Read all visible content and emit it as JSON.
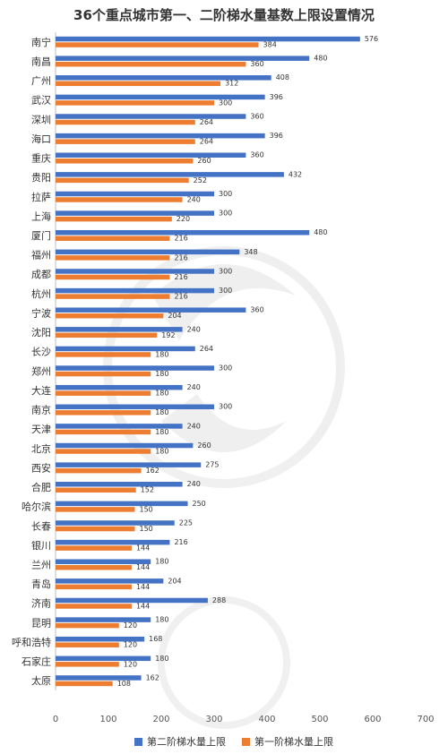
{
  "chart_data": {
    "type": "bar",
    "orientation": "horizontal",
    "title": "36个重点城市第一、二阶梯水量基数上限设置情况",
    "categories": [
      "南宁",
      "南昌",
      "广州",
      "武汉",
      "深圳",
      "海口",
      "重庆",
      "贵阳",
      "拉萨",
      "上海",
      "厦门",
      "福州",
      "成都",
      "杭州",
      "宁波",
      "沈阳",
      "长沙",
      "郑州",
      "大连",
      "南京",
      "天津",
      "北京",
      "西安",
      "合肥",
      "哈尔滨",
      "长春",
      "银川",
      "兰州",
      "青岛",
      "济南",
      "昆明",
      "呼和浩特",
      "石家庄",
      "太原"
    ],
    "series": [
      {
        "name": "第二阶梯水量上限",
        "color": "#4472C4",
        "values": [
          576,
          480,
          408,
          396,
          360,
          396,
          360,
          432,
          300,
          300,
          480,
          348,
          300,
          300,
          360,
          240,
          264,
          300,
          240,
          300,
          240,
          260,
          275,
          240,
          250,
          225,
          216,
          180,
          204,
          288,
          180,
          168,
          180,
          162
        ]
      },
      {
        "name": "第一阶梯水量上限",
        "color": "#ED7D31",
        "values": [
          384,
          360,
          312,
          300,
          264,
          264,
          260,
          252,
          240,
          220,
          216,
          216,
          216,
          216,
          204,
          192,
          180,
          180,
          180,
          180,
          180,
          180,
          162,
          152,
          150,
          150,
          144,
          144,
          144,
          144,
          120,
          120,
          120,
          108
        ]
      }
    ],
    "xlim": [
      0,
      700
    ],
    "xticks": [
      0,
      100,
      200,
      300,
      400,
      500,
      600,
      700
    ],
    "legend_position": "bottom",
    "grid": false
  }
}
